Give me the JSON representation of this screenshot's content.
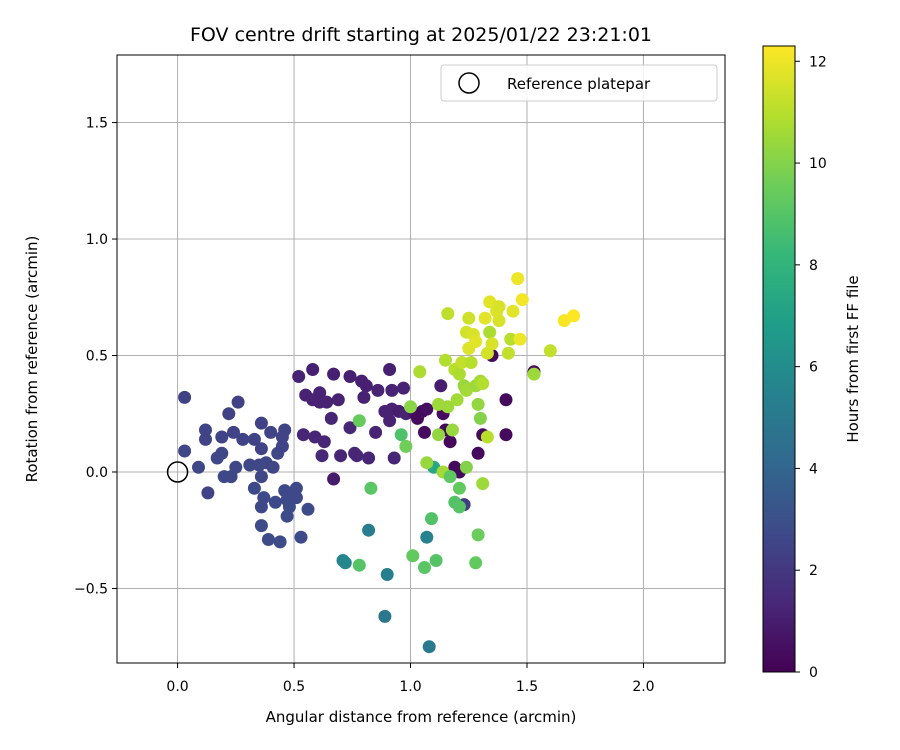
{
  "chart_data": {
    "type": "scatter",
    "title": "FOV centre drift starting at 2025/01/22 23:21:01",
    "xlabel": "Angular distance from reference (arcmin)",
    "ylabel": "Rotation from reference (arcmin)",
    "xlim": [
      -0.26,
      2.35
    ],
    "ylim": [
      -0.82,
      1.79
    ],
    "xticks": [
      0.0,
      0.5,
      1.0,
      1.5,
      2.0
    ],
    "xtick_labels": [
      "0.0",
      "0.5",
      "1.0",
      "1.5",
      "2.0"
    ],
    "yticks": [
      -0.5,
      0.0,
      0.5,
      1.0,
      1.5
    ],
    "ytick_labels": [
      "−0.5",
      "0.0",
      "0.5",
      "1.0",
      "1.5"
    ],
    "grid": true,
    "legend": {
      "placement": "top-right",
      "entries": [
        "Reference platepar"
      ]
    },
    "reference_point": {
      "x": 0.0,
      "y": 0.0
    },
    "colorbar": {
      "label": "Hours from first FF file",
      "colormap": "viridis",
      "range": [
        0,
        12.3
      ],
      "ticks": [
        0,
        2,
        4,
        6,
        8,
        10,
        12
      ],
      "tick_labels": [
        "0",
        "2",
        "4",
        "6",
        "8",
        "10",
        "12"
      ]
    },
    "points": [
      [
        0.03,
        0.32,
        2.4
      ],
      [
        0.03,
        0.09,
        2.6
      ],
      [
        0.09,
        0.02,
        2.6
      ],
      [
        0.12,
        0.18,
        2.5
      ],
      [
        0.12,
        0.14,
        2.5
      ],
      [
        0.13,
        -0.09,
        2.5
      ],
      [
        0.17,
        0.06,
        2.6
      ],
      [
        0.19,
        0.08,
        2.6
      ],
      [
        0.19,
        0.15,
        2.5
      ],
      [
        0.2,
        -0.02,
        2.7
      ],
      [
        0.22,
        0.25,
        2.4
      ],
      [
        0.23,
        -0.02,
        2.6
      ],
      [
        0.24,
        0.17,
        2.5
      ],
      [
        0.25,
        0.02,
        2.6
      ],
      [
        0.26,
        0.3,
        2.4
      ],
      [
        0.28,
        0.14,
        2.5
      ],
      [
        0.31,
        0.03,
        2.6
      ],
      [
        0.33,
        0.14,
        2.5
      ],
      [
        0.33,
        -0.07,
        2.7
      ],
      [
        0.35,
        0.03,
        2.6
      ],
      [
        0.36,
        0.21,
        2.4
      ],
      [
        0.36,
        0.1,
        2.5
      ],
      [
        0.36,
        -0.02,
        2.6
      ],
      [
        0.36,
        -0.15,
        2.7
      ],
      [
        0.36,
        -0.23,
        2.8
      ],
      [
        0.37,
        -0.11,
        2.7
      ],
      [
        0.38,
        0.04,
        2.6
      ],
      [
        0.39,
        -0.29,
        2.8
      ],
      [
        0.4,
        0.17,
        2.5
      ],
      [
        0.41,
        0.02,
        2.6
      ],
      [
        0.42,
        -0.13,
        2.7
      ],
      [
        0.43,
        0.08,
        2.6
      ],
      [
        0.44,
        -0.3,
        2.8
      ],
      [
        0.45,
        0.15,
        2.5
      ],
      [
        0.45,
        0.11,
        2.5
      ],
      [
        0.46,
        0.18,
        2.5
      ],
      [
        0.46,
        -0.08,
        2.7
      ],
      [
        0.47,
        -0.12,
        2.7
      ],
      [
        0.47,
        -0.19,
        2.8
      ],
      [
        0.48,
        -0.15,
        2.8
      ],
      [
        0.49,
        -0.1,
        2.7
      ],
      [
        0.51,
        -0.11,
        2.7
      ],
      [
        0.51,
        -0.07,
        2.7
      ],
      [
        0.53,
        -0.28,
        2.8
      ],
      [
        0.56,
        -0.16,
        2.8
      ],
      [
        0.52,
        0.41,
        1.2
      ],
      [
        0.54,
        0.16,
        1.3
      ],
      [
        0.55,
        0.33,
        1.2
      ],
      [
        0.58,
        0.31,
        1.2
      ],
      [
        0.58,
        0.44,
        1.1
      ],
      [
        0.59,
        0.15,
        1.3
      ],
      [
        0.61,
        0.34,
        1.2
      ],
      [
        0.61,
        0.3,
        1.2
      ],
      [
        0.62,
        0.07,
        1.4
      ],
      [
        0.63,
        0.13,
        1.3
      ],
      [
        0.64,
        0.3,
        1.2
      ],
      [
        0.66,
        0.23,
        1.3
      ],
      [
        0.67,
        -0.03,
        0.9
      ],
      [
        0.67,
        0.42,
        1.1
      ],
      [
        0.69,
        0.31,
        1.2
      ],
      [
        0.7,
        0.07,
        1.3
      ],
      [
        0.74,
        0.41,
        1.1
      ],
      [
        0.74,
        0.19,
        1.3
      ],
      [
        0.76,
        0.08,
        1.3
      ],
      [
        0.77,
        0.07,
        1.3
      ],
      [
        0.79,
        0.39,
        1.1
      ],
      [
        0.8,
        0.32,
        1.2
      ],
      [
        0.81,
        0.37,
        1.1
      ],
      [
        0.82,
        0.06,
        1.3
      ],
      [
        0.85,
        0.17,
        1.2
      ],
      [
        0.86,
        0.35,
        1.2
      ],
      [
        0.89,
        0.26,
        1.2
      ],
      [
        0.91,
        0.44,
        1.1
      ],
      [
        0.91,
        0.22,
        1.2
      ],
      [
        0.92,
        0.35,
        1.2
      ],
      [
        0.92,
        0.27,
        1.2
      ],
      [
        0.93,
        0.06,
        1.3
      ],
      [
        0.95,
        0.26,
        1.0
      ],
      [
        0.97,
        0.36,
        1.2
      ],
      [
        0.98,
        0.25,
        1.2
      ],
      [
        1.02,
        0.25,
        0.4
      ],
      [
        1.03,
        0.23,
        0.3
      ],
      [
        1.05,
        0.26,
        0.3
      ],
      [
        1.06,
        0.17,
        0.4
      ],
      [
        1.07,
        0.27,
        0.5
      ],
      [
        1.13,
        0.37,
        1.0
      ],
      [
        1.14,
        0.25,
        0.4
      ],
      [
        1.15,
        0.18,
        0.3
      ],
      [
        1.17,
        0.13,
        0.2
      ],
      [
        1.19,
        0.02,
        0.3
      ],
      [
        1.21,
        0.0,
        0.3
      ],
      [
        1.23,
        -0.14,
        2.2
      ],
      [
        1.29,
        0.08,
        0.3
      ],
      [
        1.31,
        0.16,
        0.3
      ],
      [
        1.35,
        0.5,
        0.3
      ],
      [
        1.41,
        0.31,
        0.3
      ],
      [
        1.41,
        0.16,
        0.3
      ],
      [
        1.53,
        0.43,
        0.3
      ],
      [
        0.71,
        -0.38,
        5.6
      ],
      [
        0.72,
        -0.39,
        5.7
      ],
      [
        0.82,
        -0.25,
        5.2
      ],
      [
        0.9,
        -0.44,
        5.3
      ],
      [
        0.89,
        -0.62,
        4.9
      ],
      [
        1.07,
        -0.28,
        5.4
      ],
      [
        1.08,
        -0.75,
        5.0
      ],
      [
        1.1,
        0.02,
        7.4
      ],
      [
        0.78,
        0.22,
        9.4
      ],
      [
        0.78,
        -0.4,
        9.0
      ],
      [
        0.83,
        -0.07,
        9.1
      ],
      [
        0.96,
        0.16,
        8.8
      ],
      [
        0.98,
        0.11,
        9.6
      ],
      [
        1.0,
        0.28,
        10.1
      ],
      [
        1.01,
        -0.36,
        9.3
      ],
      [
        1.04,
        0.43,
        10.8
      ],
      [
        1.06,
        -0.41,
        9.1
      ],
      [
        1.07,
        0.04,
        10.4
      ],
      [
        1.09,
        -0.2,
        8.9
      ],
      [
        1.11,
        -0.38,
        9.0
      ],
      [
        1.12,
        0.29,
        10.5
      ],
      [
        1.12,
        0.16,
        10.3
      ],
      [
        1.14,
        0.0,
        10.6
      ],
      [
        1.15,
        0.48,
        10.9
      ],
      [
        1.16,
        0.28,
        10.5
      ],
      [
        1.16,
        0.68,
        11.1
      ],
      [
        1.17,
        -0.02,
        9.2
      ],
      [
        1.18,
        0.18,
        10.4
      ],
      [
        1.19,
        0.44,
        11.0
      ],
      [
        1.19,
        -0.13,
        8.9
      ],
      [
        1.2,
        0.31,
        10.6
      ],
      [
        1.21,
        -0.07,
        9.3
      ],
      [
        1.21,
        -0.15,
        9.0
      ],
      [
        1.21,
        0.42,
        10.8
      ],
      [
        1.22,
        0.47,
        11.2
      ],
      [
        1.23,
        0.37,
        10.4
      ],
      [
        1.24,
        0.35,
        10.6
      ],
      [
        1.24,
        0.02,
        10.0
      ],
      [
        1.24,
        0.6,
        11.5
      ],
      [
        1.25,
        0.53,
        11.7
      ],
      [
        1.25,
        0.66,
        11.4
      ],
      [
        1.26,
        0.47,
        11.0
      ],
      [
        1.27,
        0.59,
        11.6
      ],
      [
        1.28,
        0.56,
        11.8
      ],
      [
        1.28,
        0.37,
        10.5
      ],
      [
        1.28,
        -0.39,
        9.3
      ],
      [
        1.29,
        0.29,
        10.3
      ],
      [
        1.3,
        0.39,
        10.6
      ],
      [
        1.3,
        0.23,
        10.0
      ],
      [
        1.31,
        0.38,
        10.9
      ],
      [
        1.31,
        -0.05,
        10.5
      ],
      [
        1.32,
        0.66,
        11.8
      ],
      [
        1.33,
        0.51,
        11.5
      ],
      [
        1.33,
        0.15,
        11.0
      ],
      [
        1.34,
        0.6,
        10.8
      ],
      [
        1.34,
        0.73,
        11.8
      ],
      [
        1.35,
        0.55,
        11.6
      ],
      [
        1.37,
        0.69,
        11.7
      ],
      [
        1.38,
        0.71,
        11.6
      ],
      [
        1.38,
        0.65,
        11.6
      ],
      [
        1.42,
        0.51,
        11.2
      ],
      [
        1.43,
        0.57,
        11.0
      ],
      [
        1.44,
        0.69,
        11.8
      ],
      [
        1.46,
        0.83,
        12.0
      ],
      [
        1.47,
        0.57,
        12.0
      ],
      [
        1.48,
        0.74,
        12.1
      ],
      [
        1.53,
        0.42,
        10.5
      ],
      [
        1.6,
        0.52,
        11.2
      ],
      [
        1.66,
        0.65,
        12.2
      ],
      [
        1.7,
        0.67,
        12.3
      ],
      [
        1.29,
        -0.27,
        9.5
      ]
    ]
  }
}
